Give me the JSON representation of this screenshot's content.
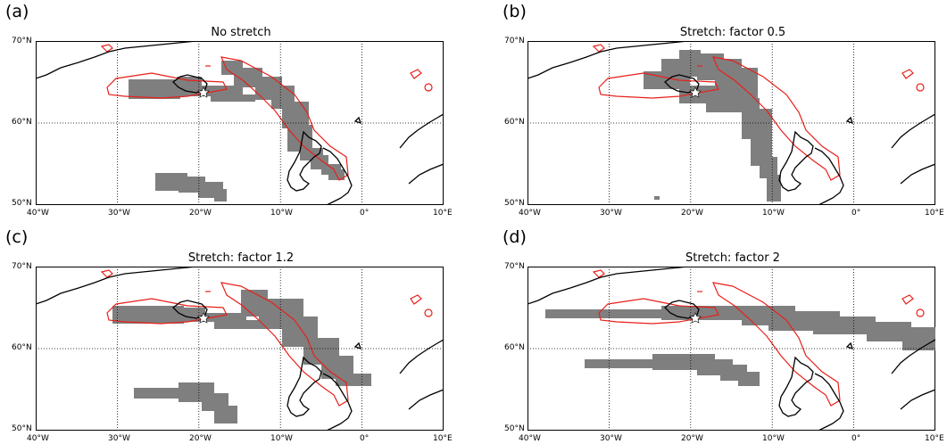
{
  "panels": [
    {
      "letter": "(a)",
      "title": "No stretch"
    },
    {
      "letter": "(b)",
      "title": "Stretch: factor 0.5"
    },
    {
      "letter": "(c)",
      "title": "Stretch: factor 1.2"
    },
    {
      "letter": "(d)",
      "title": "Stretch: factor 2"
    }
  ],
  "axes": {
    "lat_labels": [
      "70°N",
      "60°N",
      "50°N"
    ],
    "lon_labels": [
      "40°W",
      "30°W",
      "20°W",
      "10°W",
      "0°",
      "10°E"
    ]
  },
  "colors": {
    "plume": "#7f7f7f",
    "contour": "#e8201a",
    "coast": "#000000",
    "grid": "#000000",
    "vent_marker": "#ffffff"
  },
  "map_extent": {
    "lon": [
      -40,
      10
    ],
    "lat": [
      50,
      70
    ]
  },
  "grid": {
    "lons": [
      -30,
      -20,
      -10,
      0
    ],
    "lats": [
      60
    ],
    "style": "dotted"
  },
  "vent_location": {
    "lon": -19.6,
    "lat": 63.6
  }
}
